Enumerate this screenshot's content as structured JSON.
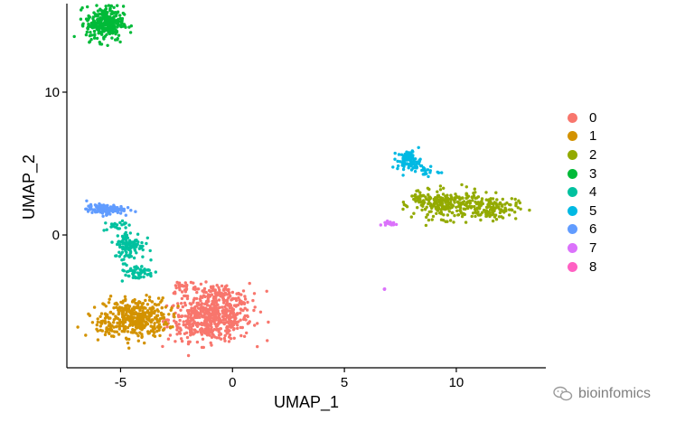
{
  "watermark": {
    "text": "bioinfomics",
    "icon": "wechat-icon"
  },
  "legend": {
    "placement": "right",
    "items": [
      {
        "label": "0",
        "color": "#F8766D"
      },
      {
        "label": "1",
        "color": "#D39200"
      },
      {
        "label": "2",
        "color": "#93AA00"
      },
      {
        "label": "3",
        "color": "#00BA38"
      },
      {
        "label": "4",
        "color": "#00C19F"
      },
      {
        "label": "5",
        "color": "#00B9E3"
      },
      {
        "label": "6",
        "color": "#619CFF"
      },
      {
        "label": "7",
        "color": "#DB72FB"
      },
      {
        "label": "8",
        "color": "#FF61C3"
      }
    ]
  },
  "chart_data": {
    "type": "scatter",
    "title": "",
    "xlabel": "UMAP_1",
    "ylabel": "UMAP_2",
    "xlim": [
      -7.4,
      14
    ],
    "ylim": [
      -9.3,
      16.2
    ],
    "xticks": [
      -5,
      0,
      5,
      10
    ],
    "yticks": [
      0,
      10
    ],
    "grid": false,
    "legend_position": "right",
    "series": [
      {
        "name": "0",
        "color": "#F8766D",
        "clusters": [
          {
            "cx": -1.0,
            "cy": -5.9,
            "sx": 1.25,
            "sy": 1.0,
            "n": 520
          },
          {
            "cx": -0.6,
            "cy": -4.3,
            "sx": 0.9,
            "sy": 0.6,
            "n": 120
          },
          {
            "cx": -2.2,
            "cy": -3.6,
            "sx": 0.4,
            "sy": 0.4,
            "n": 30
          }
        ]
      },
      {
        "name": "1",
        "color": "#D39200",
        "clusters": [
          {
            "cx": -4.3,
            "cy": -5.8,
            "sx": 0.95,
            "sy": 0.9,
            "n": 380
          },
          {
            "cx": -5.5,
            "cy": -6.5,
            "sx": 0.5,
            "sy": 0.4,
            "n": 40
          }
        ]
      },
      {
        "name": "2",
        "color": "#93AA00",
        "clusters": [
          {
            "cx": 9.6,
            "cy": 2.1,
            "sx": 1.0,
            "sy": 0.65,
            "n": 230
          },
          {
            "cx": 11.6,
            "cy": 1.9,
            "sx": 0.75,
            "sy": 0.55,
            "n": 130
          },
          {
            "cx": 8.4,
            "cy": 2.7,
            "sx": 0.4,
            "sy": 0.35,
            "n": 30
          }
        ]
      },
      {
        "name": "3",
        "color": "#00BA38",
        "clusters": [
          {
            "cx": -5.7,
            "cy": 14.8,
            "sx": 0.55,
            "sy": 0.8,
            "n": 300
          }
        ]
      },
      {
        "name": "4",
        "color": "#00C19F",
        "clusters": [
          {
            "cx": -4.6,
            "cy": -0.7,
            "sx": 0.45,
            "sy": 0.65,
            "n": 110
          },
          {
            "cx": -4.3,
            "cy": -2.6,
            "sx": 0.55,
            "sy": 0.35,
            "n": 60
          },
          {
            "cx": -5.2,
            "cy": 0.7,
            "sx": 0.3,
            "sy": 0.25,
            "n": 20
          }
        ]
      },
      {
        "name": "5",
        "color": "#00B9E3",
        "clusters": [
          {
            "cx": 7.9,
            "cy": 5.2,
            "sx": 0.35,
            "sy": 0.45,
            "n": 90
          },
          {
            "cx": 8.6,
            "cy": 4.5,
            "sx": 0.4,
            "sy": 0.3,
            "n": 20
          }
        ]
      },
      {
        "name": "6",
        "color": "#619CFF",
        "clusters": [
          {
            "cx": -5.7,
            "cy": 1.8,
            "sx": 0.55,
            "sy": 0.22,
            "n": 130
          }
        ]
      },
      {
        "name": "7",
        "color": "#DB72FB",
        "clusters": [
          {
            "cx": 7.0,
            "cy": 0.8,
            "sx": 0.25,
            "sy": 0.15,
            "n": 16
          },
          {
            "cx": 6.8,
            "cy": -3.8,
            "sx": 0.03,
            "sy": 0.03,
            "n": 3
          }
        ]
      },
      {
        "name": "8",
        "color": "#FF61C3",
        "clusters": []
      }
    ]
  }
}
